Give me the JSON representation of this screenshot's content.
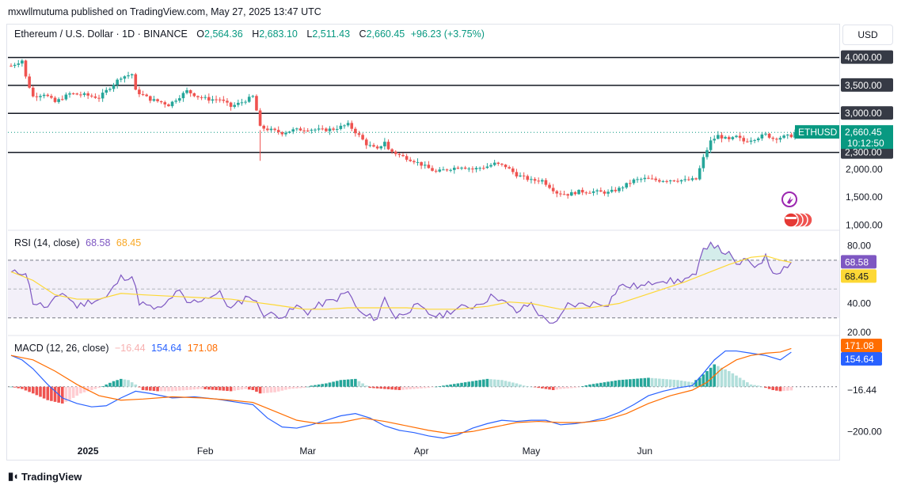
{
  "publisher": "mxwllmutuma published on TradingView.com, May 27, 2025 13:47 UTC",
  "header": {
    "symbol": "Ethereum / U.S. Dollar · 1D · BINANCE",
    "open_k": "O",
    "open": "2,564.36",
    "high_k": "H",
    "high": "2,683.10",
    "low_k": "L",
    "low": "2,511.43",
    "close_k": "C",
    "close": "2,660.45",
    "change": "+96.23 (+3.75%)"
  },
  "currency": "USD",
  "footer": {
    "logo_text": "TradingView"
  },
  "colors": {
    "up": "#26a69a",
    "down": "#ef5350",
    "rsi": "#7e57c2",
    "rsi_ma": "#fdd835",
    "macd": "#2962ff",
    "signal": "#ff6d00"
  },
  "chart_data": [
    {
      "type": "candlestick",
      "title": "Ethereum / U.S. Dollar · 1D · BINANCE",
      "symbol_badge": "ETHUSD",
      "last_price": "2,660.45",
      "countdown": "10:12:50",
      "y_ticks": [
        "4,000.00",
        "3,500.00",
        "3,000.00",
        "2,300.00",
        "2,000.00",
        "1,500.00",
        "1,000.00"
      ],
      "y_tick_values": [
        4000,
        3500,
        3000,
        2300,
        2000,
        1500,
        1000
      ],
      "horizontal_levels": [
        4000,
        3500,
        3000,
        2300
      ],
      "ylim": [
        950,
        4150
      ],
      "x_ticks": [
        "2025",
        "Feb",
        "Mar",
        "Apr",
        "May",
        "Jun"
      ],
      "close_path": [
        [
          0,
          3850
        ],
        [
          3,
          3950
        ],
        [
          4,
          3650
        ],
        [
          6,
          3300
        ],
        [
          9,
          3350
        ],
        [
          12,
          3200
        ],
        [
          16,
          3350
        ],
        [
          20,
          3330
        ],
        [
          24,
          3280
        ],
        [
          30,
          3650
        ],
        [
          33,
          3700
        ],
        [
          34,
          3400
        ],
        [
          38,
          3250
        ],
        [
          41,
          3200
        ],
        [
          43,
          3150
        ],
        [
          45,
          3250
        ],
        [
          48,
          3400
        ],
        [
          51,
          3300
        ],
        [
          54,
          3250
        ],
        [
          57,
          3250
        ],
        [
          60,
          3120
        ],
        [
          63,
          3200
        ],
        [
          66,
          3300
        ],
        [
          67,
          3050
        ],
        [
          68,
          2750
        ],
        [
          71,
          2700
        ],
        [
          74,
          2650
        ],
        [
          77,
          2700
        ],
        [
          81,
          2720
        ],
        [
          85,
          2700
        ],
        [
          88,
          2720
        ],
        [
          92,
          2800
        ],
        [
          95,
          2600
        ],
        [
          97,
          2450
        ],
        [
          100,
          2350
        ],
        [
          102,
          2500
        ],
        [
          103,
          2350
        ],
        [
          106,
          2250
        ],
        [
          110,
          2150
        ],
        [
          113,
          2050
        ],
        [
          116,
          1950
        ],
        [
          119,
          2000
        ],
        [
          123,
          2050
        ],
        [
          126,
          2000
        ],
        [
          130,
          2050
        ],
        [
          132,
          2100
        ],
        [
          135,
          2050
        ],
        [
          138,
          1900
        ],
        [
          142,
          1800
        ],
        [
          145,
          1800
        ],
        [
          149,
          1580
        ],
        [
          152,
          1550
        ],
        [
          155,
          1600
        ],
        [
          159,
          1600
        ],
        [
          163,
          1580
        ],
        [
          166,
          1650
        ],
        [
          170,
          1800
        ],
        [
          173,
          1830
        ],
        [
          177,
          1800
        ],
        [
          181,
          1810
        ],
        [
          184,
          1800
        ],
        [
          187,
          1820
        ],
        [
          189,
          2200
        ],
        [
          191,
          2500
        ],
        [
          193,
          2600
        ],
        [
          196,
          2520
        ],
        [
          198,
          2580
        ],
        [
          200,
          2500
        ],
        [
          203,
          2550
        ],
        [
          206,
          2620
        ],
        [
          208,
          2550
        ],
        [
          210,
          2570
        ],
        [
          213,
          2600
        ],
        [
          214,
          2660.45
        ]
      ]
    },
    {
      "type": "line",
      "title": "RSI (14, close)",
      "rsi_value": "68.58",
      "ma_value": "68.45",
      "y_ticks": [
        "80.00",
        "40.00",
        "20.00"
      ],
      "bands": [
        30,
        50,
        70
      ],
      "ylim": [
        20,
        88
      ],
      "rsi": [
        [
          0,
          61
        ],
        [
          4,
          62
        ],
        [
          6,
          41
        ],
        [
          10,
          37
        ],
        [
          14,
          48
        ],
        [
          18,
          38
        ],
        [
          22,
          42
        ],
        [
          26,
          44
        ],
        [
          30,
          58
        ],
        [
          33,
          59
        ],
        [
          35,
          41
        ],
        [
          38,
          37
        ],
        [
          41,
          36
        ],
        [
          44,
          45
        ],
        [
          46,
          48
        ],
        [
          48,
          40
        ],
        [
          51,
          42
        ],
        [
          54,
          45
        ],
        [
          57,
          47
        ],
        [
          60,
          36
        ],
        [
          63,
          42
        ],
        [
          65,
          46
        ],
        [
          67,
          40
        ],
        [
          69,
          33
        ],
        [
          72,
          32
        ],
        [
          75,
          32
        ],
        [
          78,
          38
        ],
        [
          81,
          34
        ],
        [
          85,
          40
        ],
        [
          88,
          42
        ],
        [
          92,
          48
        ],
        [
          95,
          34
        ],
        [
          97,
          31
        ],
        [
          100,
          30
        ],
        [
          102,
          44
        ],
        [
          105,
          30
        ],
        [
          108,
          35
        ],
        [
          111,
          38
        ],
        [
          114,
          33
        ],
        [
          117,
          31
        ],
        [
          120,
          35
        ],
        [
          123,
          37
        ],
        [
          126,
          38
        ],
        [
          130,
          43
        ],
        [
          132,
          46
        ],
        [
          135,
          40
        ],
        [
          138,
          34
        ],
        [
          142,
          40
        ],
        [
          145,
          30
        ],
        [
          149,
          26
        ],
        [
          152,
          39
        ],
        [
          155,
          39
        ],
        [
          159,
          40
        ],
        [
          163,
          40
        ],
        [
          166,
          52
        ],
        [
          170,
          52
        ],
        [
          173,
          52
        ],
        [
          177,
          57
        ],
        [
          181,
          55
        ],
        [
          184,
          57
        ],
        [
          187,
          59
        ],
        [
          189,
          77
        ],
        [
          191,
          83
        ],
        [
          193,
          78
        ],
        [
          196,
          74
        ],
        [
          198,
          66
        ],
        [
          200,
          70
        ],
        [
          203,
          66
        ],
        [
          206,
          72
        ],
        [
          208,
          62
        ],
        [
          210,
          63
        ],
        [
          213,
          68.58
        ]
      ],
      "rsi_ma": [
        [
          0,
          62
        ],
        [
          6,
          56
        ],
        [
          12,
          46
        ],
        [
          18,
          43
        ],
        [
          24,
          43
        ],
        [
          30,
          47
        ],
        [
          36,
          46
        ],
        [
          44,
          45
        ],
        [
          52,
          44
        ],
        [
          60,
          43
        ],
        [
          66,
          41
        ],
        [
          72,
          39
        ],
        [
          80,
          36
        ],
        [
          86,
          36
        ],
        [
          92,
          37
        ],
        [
          100,
          37
        ],
        [
          108,
          37
        ],
        [
          114,
          36
        ],
        [
          122,
          36
        ],
        [
          130,
          38
        ],
        [
          136,
          41
        ],
        [
          142,
          40
        ],
        [
          150,
          36
        ],
        [
          158,
          37
        ],
        [
          166,
          40
        ],
        [
          172,
          45
        ],
        [
          178,
          50
        ],
        [
          184,
          55
        ],
        [
          190,
          61
        ],
        [
          196,
          67
        ],
        [
          202,
          72
        ],
        [
          206,
          73
        ],
        [
          210,
          70
        ],
        [
          213,
          68.45
        ]
      ]
    },
    {
      "type": "bar+line",
      "title": "MACD (12, 26, close)",
      "histogram_value": "−16.44",
      "macd_value": "154.64",
      "signal_value": "171.08",
      "y_ticks": [
        "−200.00"
      ],
      "ylim": [
        -245,
        215
      ],
      "macd": [
        [
          0,
          140
        ],
        [
          3,
          120
        ],
        [
          6,
          80
        ],
        [
          10,
          10
        ],
        [
          14,
          -50
        ],
        [
          18,
          -75
        ],
        [
          22,
          -90
        ],
        [
          26,
          -85
        ],
        [
          30,
          -50
        ],
        [
          34,
          -20
        ],
        [
          38,
          -30
        ],
        [
          44,
          -50
        ],
        [
          50,
          -45
        ],
        [
          56,
          -55
        ],
        [
          62,
          -70
        ],
        [
          66,
          -80
        ],
        [
          70,
          -140
        ],
        [
          74,
          -180
        ],
        [
          78,
          -185
        ],
        [
          82,
          -170
        ],
        [
          86,
          -150
        ],
        [
          90,
          -130
        ],
        [
          94,
          -120
        ],
        [
          98,
          -140
        ],
        [
          102,
          -175
        ],
        [
          106,
          -195
        ],
        [
          110,
          -205
        ],
        [
          114,
          -220
        ],
        [
          118,
          -230
        ],
        [
          122,
          -215
        ],
        [
          126,
          -185
        ],
        [
          130,
          -165
        ],
        [
          134,
          -150
        ],
        [
          138,
          -155
        ],
        [
          142,
          -150
        ],
        [
          146,
          -150
        ],
        [
          150,
          -170
        ],
        [
          154,
          -165
        ],
        [
          158,
          -155
        ],
        [
          162,
          -140
        ],
        [
          166,
          -115
        ],
        [
          170,
          -80
        ],
        [
          174,
          -40
        ],
        [
          178,
          -20
        ],
        [
          182,
          -5
        ],
        [
          186,
          5
        ],
        [
          189,
          60
        ],
        [
          192,
          120
        ],
        [
          195,
          160
        ],
        [
          198,
          160
        ],
        [
          202,
          150
        ],
        [
          206,
          140
        ],
        [
          210,
          120
        ],
        [
          213,
          154.64
        ]
      ],
      "signal": [
        [
          0,
          140
        ],
        [
          6,
          120
        ],
        [
          12,
          70
        ],
        [
          18,
          10
        ],
        [
          24,
          -40
        ],
        [
          30,
          -60
        ],
        [
          36,
          -55
        ],
        [
          44,
          -45
        ],
        [
          52,
          -50
        ],
        [
          60,
          -60
        ],
        [
          66,
          -70
        ],
        [
          72,
          -110
        ],
        [
          78,
          -150
        ],
        [
          84,
          -165
        ],
        [
          90,
          -160
        ],
        [
          96,
          -140
        ],
        [
          102,
          -155
        ],
        [
          108,
          -175
        ],
        [
          114,
          -195
        ],
        [
          120,
          -210
        ],
        [
          126,
          -200
        ],
        [
          132,
          -180
        ],
        [
          138,
          -160
        ],
        [
          144,
          -155
        ],
        [
          150,
          -160
        ],
        [
          156,
          -160
        ],
        [
          162,
          -150
        ],
        [
          168,
          -120
        ],
        [
          174,
          -75
        ],
        [
          180,
          -40
        ],
        [
          186,
          -15
        ],
        [
          190,
          20
        ],
        [
          194,
          80
        ],
        [
          198,
          120
        ],
        [
          202,
          140
        ],
        [
          206,
          150
        ],
        [
          210,
          155
        ],
        [
          213,
          171.08
        ]
      ],
      "histogram": [
        [
          0,
          0
        ],
        [
          3,
          -10
        ],
        [
          6,
          -30
        ],
        [
          10,
          -60
        ],
        [
          14,
          -75
        ],
        [
          16,
          -60
        ],
        [
          19,
          -30
        ],
        [
          22,
          -15
        ],
        [
          24,
          -5
        ],
        [
          26,
          10
        ],
        [
          28,
          25
        ],
        [
          30,
          35
        ],
        [
          32,
          30
        ],
        [
          34,
          10
        ],
        [
          36,
          -15
        ],
        [
          40,
          -20
        ],
        [
          44,
          -20
        ],
        [
          48,
          -15
        ],
        [
          52,
          -10
        ],
        [
          56,
          -15
        ],
        [
          60,
          -20
        ],
        [
          64,
          -10
        ],
        [
          66,
          -15
        ],
        [
          68,
          -30
        ],
        [
          72,
          -25
        ],
        [
          76,
          -10
        ],
        [
          80,
          -5
        ],
        [
          82,
          5
        ],
        [
          86,
          15
        ],
        [
          90,
          30
        ],
        [
          94,
          35
        ],
        [
          96,
          15
        ],
        [
          98,
          -5
        ],
        [
          102,
          -10
        ],
        [
          106,
          -15
        ],
        [
          110,
          -10
        ],
        [
          114,
          -5
        ],
        [
          118,
          5
        ],
        [
          122,
          15
        ],
        [
          126,
          25
        ],
        [
          130,
          35
        ],
        [
          134,
          30
        ],
        [
          138,
          15
        ],
        [
          140,
          5
        ],
        [
          144,
          -5
        ],
        [
          148,
          -15
        ],
        [
          150,
          -10
        ],
        [
          154,
          -5
        ],
        [
          158,
          10
        ],
        [
          162,
          20
        ],
        [
          166,
          30
        ],
        [
          170,
          35
        ],
        [
          174,
          40
        ],
        [
          178,
          35
        ],
        [
          182,
          30
        ],
        [
          186,
          20
        ],
        [
          188,
          40
        ],
        [
          190,
          70
        ],
        [
          192,
          100
        ],
        [
          194,
          85
        ],
        [
          196,
          70
        ],
        [
          198,
          50
        ],
        [
          200,
          30
        ],
        [
          202,
          10
        ],
        [
          204,
          5
        ],
        [
          206,
          -5
        ],
        [
          208,
          -15
        ],
        [
          210,
          -20
        ],
        [
          213,
          -16.44
        ]
      ]
    }
  ]
}
